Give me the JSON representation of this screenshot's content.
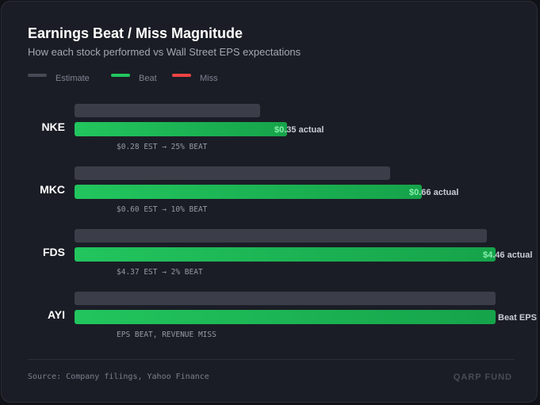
{
  "header": {
    "title": "Earnings Beat / Miss Magnitude",
    "subtitle": "How each stock performed vs Wall Street EPS expectations"
  },
  "legend": [
    {
      "label": "Estimate",
      "color": "#464a55"
    },
    {
      "label": "Beat",
      "color": "#22c55e"
    },
    {
      "label": "Miss",
      "color": "#ef4444"
    }
  ],
  "colors": {
    "estimate": "#3b3e48",
    "beat_start": "#22c55e",
    "beat_end": "#16a34a",
    "value_label": "#c8ccd4",
    "value_overlap": "#86efac"
  },
  "chart_data": {
    "type": "bar",
    "categories": [
      "NKE",
      "MKC",
      "FDS",
      "AYI"
    ],
    "series": [
      {
        "name": "Estimate",
        "values": [
          0.28,
          0.6,
          4.37,
          null
        ]
      },
      {
        "name": "Beat",
        "values": [
          0.35,
          0.66,
          4.46,
          null
        ]
      }
    ],
    "estimate_fill": [
      0.44,
      0.75,
      0.98,
      1.0
    ],
    "actual_fill": [
      0.505,
      0.825,
      1.0,
      1.0
    ],
    "value_labels": [
      "$0.35 actual",
      "$0.66 actual",
      "$4.46 actual",
      "Beat EPS"
    ],
    "annotations": [
      "$0.28 EST → 25% BEAT",
      "$0.60 EST → 10% BEAT",
      "$4.37 EST → 2% BEAT",
      "EPS BEAT, REVENUE MISS"
    ]
  },
  "footer": {
    "source": "Source: Company filings, Yahoo Finance",
    "brand": "QARP FUND"
  }
}
